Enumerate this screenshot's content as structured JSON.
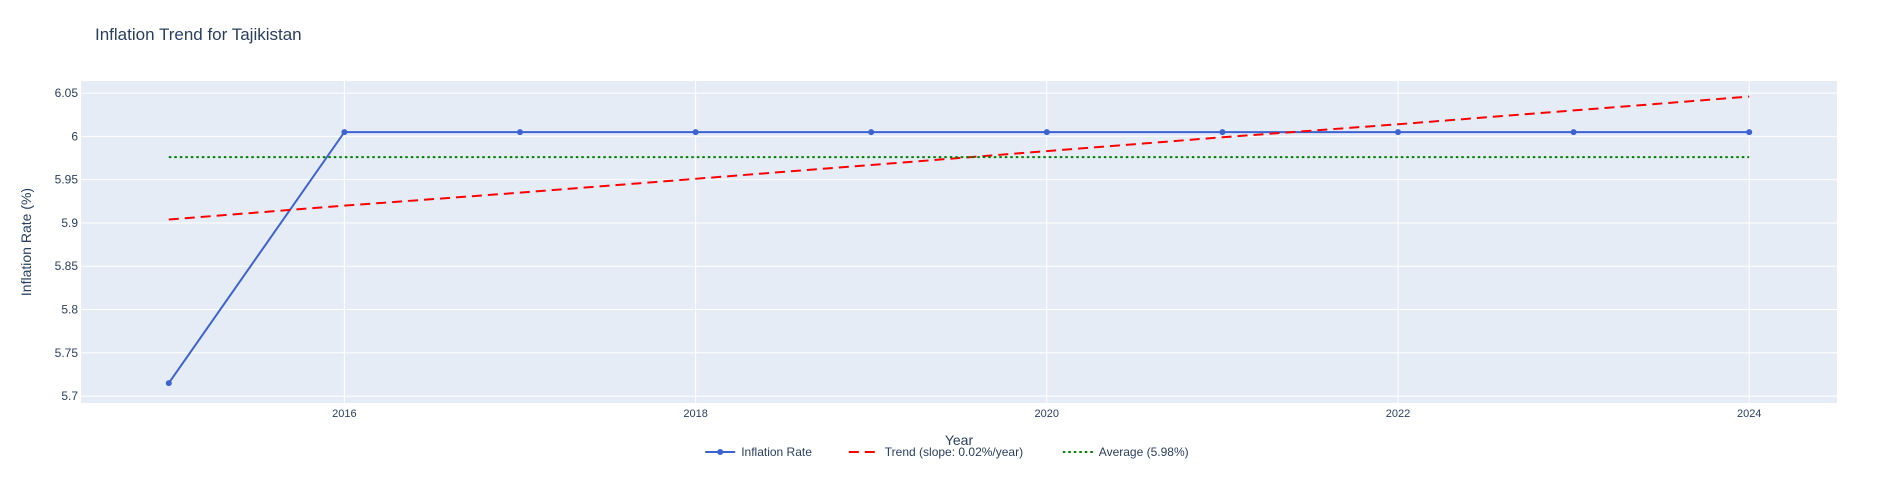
{
  "chart_data": {
    "type": "line",
    "title": "Inflation Trend for Tajikistan",
    "xlabel": "Year",
    "ylabel": "Inflation Rate (%)",
    "xlim": [
      2014.5,
      2024.5
    ],
    "ylim": [
      5.692,
      6.064
    ],
    "x_ticks": [
      2016,
      2018,
      2020,
      2022,
      2024
    ],
    "y_ticks": [
      5.7,
      5.75,
      5.8,
      5.85,
      5.9,
      5.95,
      6,
      6.05
    ],
    "y_tick_labels": [
      "5.7",
      "5.75",
      "5.8",
      "5.85",
      "5.9",
      "5.95",
      "6",
      "6.05"
    ],
    "x_tick_labels": [
      "2016",
      "2018",
      "2020",
      "2022",
      "2024"
    ],
    "grid": true,
    "legend_position": "bottom-center",
    "x": [
      2015,
      2016,
      2017,
      2018,
      2019,
      2020,
      2021,
      2022,
      2023,
      2024
    ],
    "series": [
      {
        "name": "Inflation Rate",
        "style": "solid-markers",
        "color": "#3d63d1",
        "values": [
          5.715,
          6.005,
          6.005,
          6.005,
          6.005,
          6.005,
          6.005,
          6.005,
          6.005,
          6.005
        ]
      },
      {
        "name": "Trend (slope: 0.02%/year)",
        "style": "dash",
        "color": "#ff0000",
        "values": [
          5.904,
          5.92,
          5.935,
          5.951,
          5.967,
          5.983,
          5.999,
          6.014,
          6.03,
          6.046
        ]
      },
      {
        "name": "Average (5.98%)",
        "style": "dot",
        "color": "#008000",
        "values": [
          5.976,
          5.976,
          5.976,
          5.976,
          5.976,
          5.976,
          5.976,
          5.976,
          5.976,
          5.976
        ]
      }
    ],
    "colors": {
      "plot_background": "#e5ecf6",
      "grid": "#ffffff",
      "text": "#2a3f5f"
    }
  }
}
